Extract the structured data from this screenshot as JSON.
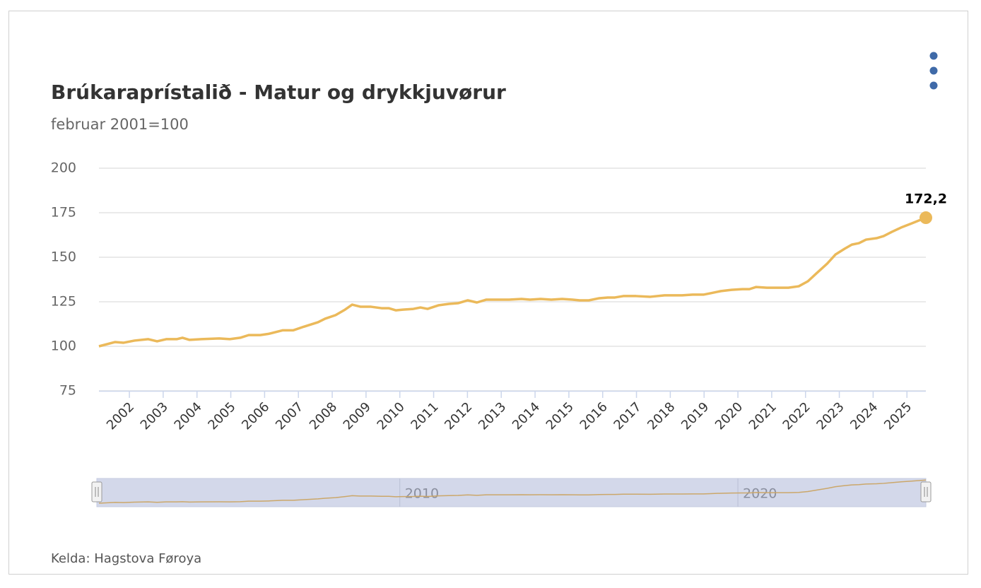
{
  "chart_data": {
    "type": "line",
    "title": "Brúkaraprístalið - Matur og drykkjuvørur",
    "subtitle": "februar 2001=100",
    "source": "Kelda: Hagstova Føroya",
    "x": [
      2001.1,
      2001.58,
      2001.83,
      2002.15,
      2002.56,
      2002.82,
      2003.09,
      2003.4,
      2003.57,
      2003.78,
      2004.13,
      2004.66,
      2004.97,
      2005.28,
      2005.53,
      2005.87,
      2006.12,
      2006.54,
      2006.85,
      2007.16,
      2007.58,
      2007.79,
      2008.1,
      2008.38,
      2008.59,
      2008.84,
      2009.15,
      2009.46,
      2009.67,
      2009.88,
      2010.09,
      2010.4,
      2010.61,
      2010.82,
      2011.14,
      2011.45,
      2011.72,
      2012.01,
      2012.28,
      2012.56,
      2012.91,
      2013.23,
      2013.6,
      2013.85,
      2014.17,
      2014.48,
      2014.8,
      2015.11,
      2015.32,
      2015.59,
      2015.9,
      2016.15,
      2016.36,
      2016.61,
      2016.99,
      2017.41,
      2017.83,
      2018.14,
      2018.35,
      2018.66,
      2018.98,
      2019.19,
      2019.5,
      2019.81,
      2020.13,
      2020.34,
      2020.54,
      2020.86,
      2021.17,
      2021.49,
      2021.8,
      2022.07,
      2022.32,
      2022.64,
      2022.89,
      2023.16,
      2023.37,
      2023.58,
      2023.79,
      2024.1,
      2024.31,
      2024.56,
      2024.83,
      2025.14,
      2025.56
    ],
    "series": [
      {
        "name": "Matur og drykkjuvørur",
        "color": "#ebb95a",
        "values": [
          100,
          102.4,
          102,
          103.2,
          104,
          102.8,
          104,
          104,
          104.8,
          103.6,
          104,
          104.4,
          104,
          104.8,
          106.3,
          106.3,
          107,
          109,
          109,
          111,
          113.5,
          115.5,
          117.5,
          120.6,
          123.4,
          122.2,
          122.2,
          121.4,
          121.4,
          120.2,
          120.6,
          121,
          121.8,
          121,
          123,
          123.8,
          124.2,
          125.8,
          124.6,
          126.2,
          126.2,
          126.2,
          126.6,
          126.2,
          126.6,
          126.2,
          126.6,
          126.2,
          125.8,
          125.8,
          127,
          127.4,
          127.4,
          128.2,
          128.2,
          127.8,
          128.6,
          128.6,
          128.6,
          129,
          129,
          129.8,
          131,
          131.7,
          132.1,
          132.1,
          133.3,
          132.9,
          132.9,
          132.9,
          133.7,
          136.5,
          140.9,
          146.4,
          151.6,
          154.8,
          157.1,
          157.9,
          159.9,
          160.7,
          161.9,
          164.3,
          166.7,
          169,
          172.2
        ],
        "value_labels": [
          null,
          null,
          null,
          null,
          null,
          null,
          null,
          null,
          null,
          null,
          null,
          null,
          null,
          null,
          null,
          null,
          null,
          null,
          null,
          null,
          null,
          null,
          null,
          null,
          null,
          null,
          null,
          null,
          null,
          null,
          null,
          null,
          null,
          null,
          null,
          null,
          null,
          null,
          null,
          null,
          null,
          null,
          null,
          null,
          null,
          null,
          null,
          null,
          null,
          null,
          null,
          null,
          null,
          null,
          null,
          null,
          null,
          null,
          null,
          null,
          null,
          null,
          null,
          null,
          null,
          null,
          null,
          null,
          null,
          null,
          null,
          null,
          null,
          null,
          null,
          null,
          null,
          null,
          null,
          null,
          null,
          null,
          null,
          null,
          "172,2"
        ]
      }
    ],
    "xlim": [
      2001.1,
      2025.56
    ],
    "xticks": [
      2002,
      2003,
      2004,
      2005,
      2006,
      2007,
      2008,
      2009,
      2010,
      2011,
      2012,
      2013,
      2014,
      2015,
      2016,
      2017,
      2018,
      2019,
      2020,
      2021,
      2022,
      2023,
      2024,
      2025
    ],
    "ylim": [
      75,
      200
    ],
    "yticks": [
      75,
      100,
      125,
      150,
      175,
      200
    ],
    "grid": true,
    "navigator_xticks": [
      2010,
      2020
    ]
  }
}
